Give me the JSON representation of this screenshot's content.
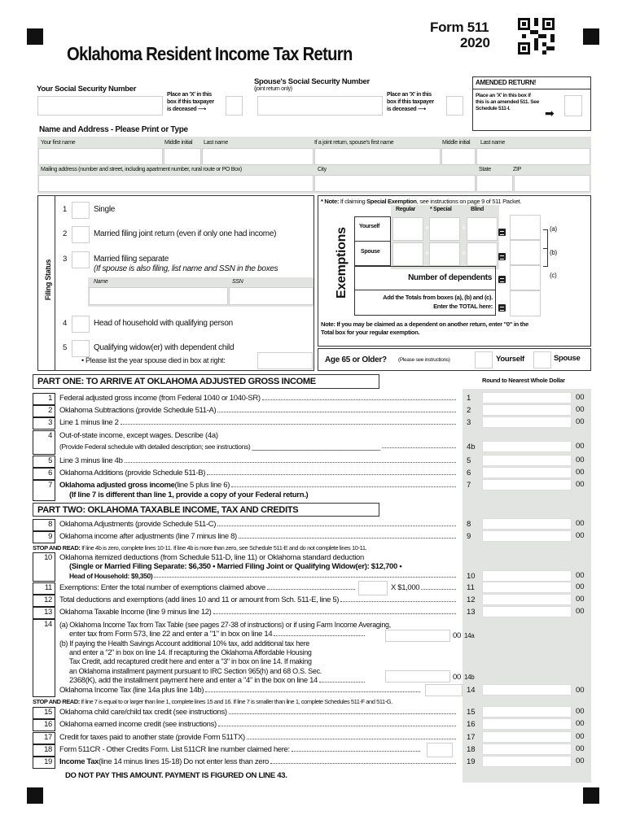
{
  "header": {
    "title": "Oklahoma Resident Income Tax Return",
    "form": "Form 511",
    "year": "2020"
  },
  "ssn": {
    "your_label": "Your Social Security Number",
    "deceased_lines": [
      "Place an 'X' in this",
      "box if this taxpayer",
      "is deceased"
    ],
    "spouse_label": "Spouse's Social Security Number",
    "spouse_sub": "(joint return only)"
  },
  "amended": {
    "title": "AMENDED RETURN!",
    "lines": [
      "Place an 'X' in this box if",
      "this is an amended 511. See",
      "Schedule 511-I."
    ]
  },
  "name_address": {
    "heading": "Name and Address - Please Print or Type",
    "first": "Your first name",
    "middle": "Middle initial",
    "last": "Last name",
    "spouse_first": "If a joint return, spouse's first name",
    "spouse_middle": "Middle initial",
    "spouse_last": "Last name",
    "mailing": "Mailing address (number and street, including apartment number, rural route or PO Box)",
    "city": "City",
    "state": "State",
    "zip": "ZIP"
  },
  "filing_status": {
    "title": "Filing Status",
    "items": [
      {
        "num": "1",
        "label": "Single"
      },
      {
        "num": "2",
        "label": "Married filing joint return (even if only one had income)"
      },
      {
        "num": "3",
        "label": "Married filing separate",
        "sub": "(If spouse is also filing, list name and SSN in the boxes"
      },
      {
        "num": "4",
        "label": "Head of household with qualifying person"
      },
      {
        "num": "5",
        "label": "Qualifying widow(er) with dependent child"
      }
    ],
    "name_col": "Name",
    "ssn_col": "SSN",
    "year_note": "• Please list the year spouse died in box at right:"
  },
  "exemptions": {
    "title": "Exemptions",
    "note_prefix": "* Note:",
    "note_text": " If claiming ",
    "note_bold": "Special Exemption",
    "note_rest": ", see instructions on page 9 of 511 Packet.",
    "cols": [
      "Regular",
      "* Special",
      "Blind"
    ],
    "yourself": "Yourself",
    "spouse": "Spouse",
    "dependents": "Number of dependents",
    "total_1": "Add the Totals from boxes (a), (b) and (c).",
    "total_2": "Enter the TOTAL here:",
    "a": "(a)",
    "b": "(b)",
    "c": "(c)",
    "bottom_note_1": "Note:  If you may be claimed as a dependent on another return, enter \"0\" in the",
    "bottom_note_2": "Total box for your regular exemption."
  },
  "age65": {
    "label": "Age 65 or Older?",
    "sub": "(Please see instructions)",
    "yourself": "Yourself",
    "spouse": "Spouse"
  },
  "round_note": "Round to Nearest Whole Dollar",
  "part_one": "PART ONE:  TO ARRIVE AT OKLAHOMA ADJUSTED GROSS INCOME",
  "part_two": "PART TWO:  OKLAHOMA TAXABLE INCOME, TAX AND CREDITS",
  "lines": [
    {
      "num": "1",
      "text": "Federal adjusted gross income (from Federal 1040 or 1040-SR)",
      "ref": "1",
      "cents": "00"
    },
    {
      "num": "2",
      "text": "Oklahoma Subtractions (provide Schedule 511-A)",
      "ref": "2",
      "cents": "00"
    },
    {
      "num": "3",
      "text": "Line 1 minus line 2",
      "ref": "3",
      "cents": "00"
    },
    {
      "num": "4",
      "pre": "Out-of-state income, except wages. Describe (4a)",
      "text": "(Provide Federal schedule with detailed description; see instructions) ____________________________________",
      "ref": "4b",
      "cents": "00"
    },
    {
      "num": "5",
      "text": "Line 3 minus line 4b",
      "ref": "5",
      "cents": "00"
    },
    {
      "num": "6",
      "text": "Oklahoma Additions (provide Schedule 511-B)",
      "ref": "6",
      "cents": "00"
    },
    {
      "num": "7",
      "bold": "Oklahoma adjusted gross income",
      "text": " (line 5 plus line 6)",
      "post": "(If line 7 is different than line 1, provide a copy of your Federal return.)",
      "ref": "7",
      "cents": "00"
    },
    {
      "num": "8",
      "text": "Oklahoma Adjustments (provide Schedule 511-C)",
      "ref": "8",
      "cents": "00"
    },
    {
      "num": "9",
      "text": "Oklahoma income after adjustments (line 7 minus line 8)",
      "ref": "9",
      "cents": "00"
    },
    {
      "num": "10",
      "pre": "Oklahoma itemized deductions (from Schedule 511-D, line 11) or Oklahoma standard deduction",
      "pre2": "(Single or Married Filing Separate: $6,350 • Married Filing Joint or Qualifying Widow(er): $12,700 •",
      "bold": "Head of Household: $9,350)",
      "text": "",
      "ref": "10",
      "cents": "00"
    },
    {
      "num": "11",
      "text": "Exemptions: Enter the total number of exemptions claimed above",
      "mult": "X $1,000",
      "ref": "11",
      "cents": "00"
    },
    {
      "num": "12",
      "text": "Total deductions and exemptions (add lines 10 and 11 or amount from Sch. 511-E, line 5)",
      "ref": "12",
      "cents": "00"
    },
    {
      "num": "13",
      "text": "Oklahoma Taxable Income (line 9 minus line 12)",
      "ref": "13",
      "cents": "00"
    },
    {
      "num": "15",
      "text": "Oklahoma child care/child tax credit (see instructions)",
      "ref": "15",
      "cents": "00"
    },
    {
      "num": "16",
      "text": "Oklahoma earned income credit (see instructions)",
      "ref": "16",
      "cents": "00"
    },
    {
      "num": "17",
      "text": "Credit for taxes paid to another state (provide Form 511TX)",
      "ref": "17",
      "cents": "00"
    },
    {
      "num": "18",
      "text": "Form 511CR - Other Credits Form. List 511CR line number claimed here:",
      "ref": "18",
      "cents": "00",
      "smallbox": true
    },
    {
      "num": "19",
      "bold": "Income Tax",
      "text": " (line 14 minus lines 15-18)  Do not enter less than zero",
      "ref": "19",
      "cents": "00"
    }
  ],
  "stop1": {
    "bold": "STOP AND READ:",
    "text": " If line 4b is zero, complete lines 10-11. If line 4b is more than zero, see Schedule 511-E and do not complete lines 10-11."
  },
  "stop2": {
    "bold": "STOP AND READ:",
    "text": " If line 7 is equal to or larger than line 1, complete lines 15 and 16.  If line 7 is smaller than line 1, complete Schedules 511-F and 511-G."
  },
  "line14": {
    "num": "14",
    "a": [
      "(a) Oklahoma Income Tax from Tax Table (see pages 27-38 of instructions) or if using Farm Income Averaging,",
      "enter tax from Form 573, line 22 and enter a \"1\" in box on line 14"
    ],
    "b": [
      "(b) If paying the Health Savings Account additional 10% tax, add additional tax here",
      "and enter a \"2\" in box on line 14. If recapturing the Oklahoma Affordable Housing",
      "Tax Credit, add recaptured credit here and enter a \"3\" in box on line 14. If making",
      "an Oklahoma installment payment pursuant to IRC Section 965(h) and 68 O.S. Sec.",
      "2368(K), add the installment payment here and enter a \"4\" in the box on line 14"
    ],
    "ref_a": "14a",
    "ref_b": "14b",
    "total": "Oklahoma Income Tax (line 14a plus line 14b)",
    "ref": "14",
    "cents": "00"
  },
  "footer_note": "DO NOT PAY THIS AMOUNT. PAYMENT IS FIGURED ON LINE 43."
}
